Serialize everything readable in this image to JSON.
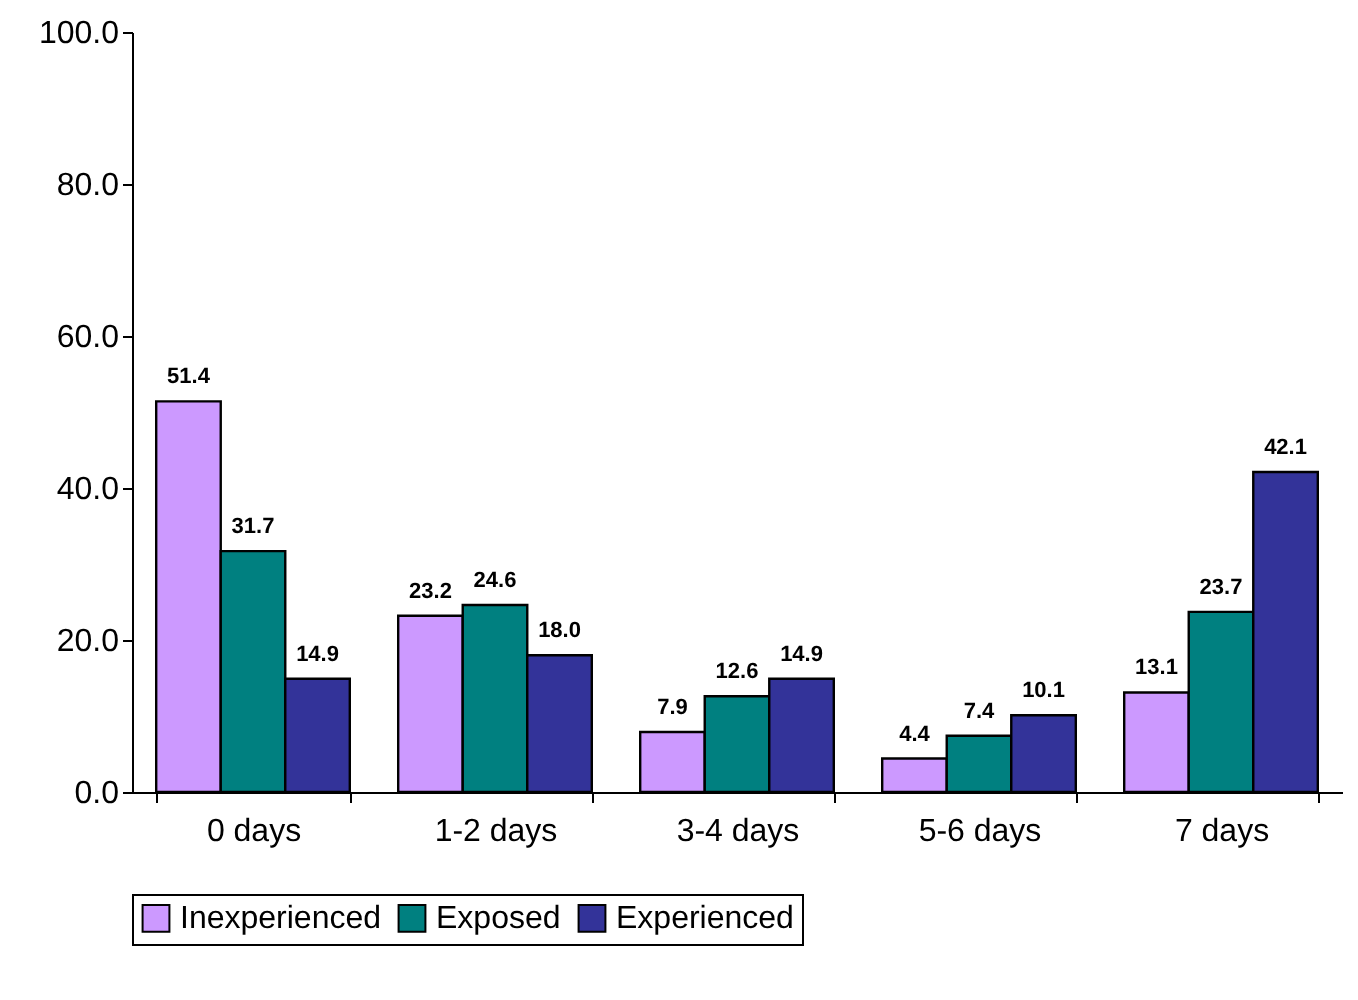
{
  "chart_data": {
    "type": "bar",
    "categories": [
      "0 days",
      "1-2 days",
      "3-4 days",
      "5-6 days",
      "7 days"
    ],
    "series": [
      {
        "name": "Inexperienced",
        "color": "#cc99ff",
        "values": [
          51.4,
          23.2,
          7.9,
          4.4,
          13.1
        ],
        "value_labels": [
          "51.4",
          "23.2",
          "7.9",
          "4.4",
          "13.1"
        ]
      },
      {
        "name": "Exposed",
        "color": "#008080",
        "values": [
          31.7,
          24.6,
          12.6,
          7.4,
          23.7
        ],
        "value_labels": [
          "31.7",
          "24.6",
          "12.6",
          "7.4",
          "23.7"
        ]
      },
      {
        "name": "Experienced",
        "color": "#333399",
        "values": [
          14.9,
          18.0,
          14.9,
          10.1,
          42.1
        ],
        "value_labels": [
          "14.9",
          "18.0",
          "14.9",
          "10.1",
          "42.1"
        ]
      }
    ],
    "ylim": [
      0,
      100
    ],
    "yticks": [
      {
        "value": 0,
        "label": "0.0"
      },
      {
        "value": 20,
        "label": "20.0"
      },
      {
        "value": 40,
        "label": "40.0"
      },
      {
        "value": 60,
        "label": "60.0"
      },
      {
        "value": 80,
        "label": "80.0"
      },
      {
        "value": 100,
        "label": "100.0"
      }
    ],
    "grid": false,
    "legend": "bottom"
  }
}
